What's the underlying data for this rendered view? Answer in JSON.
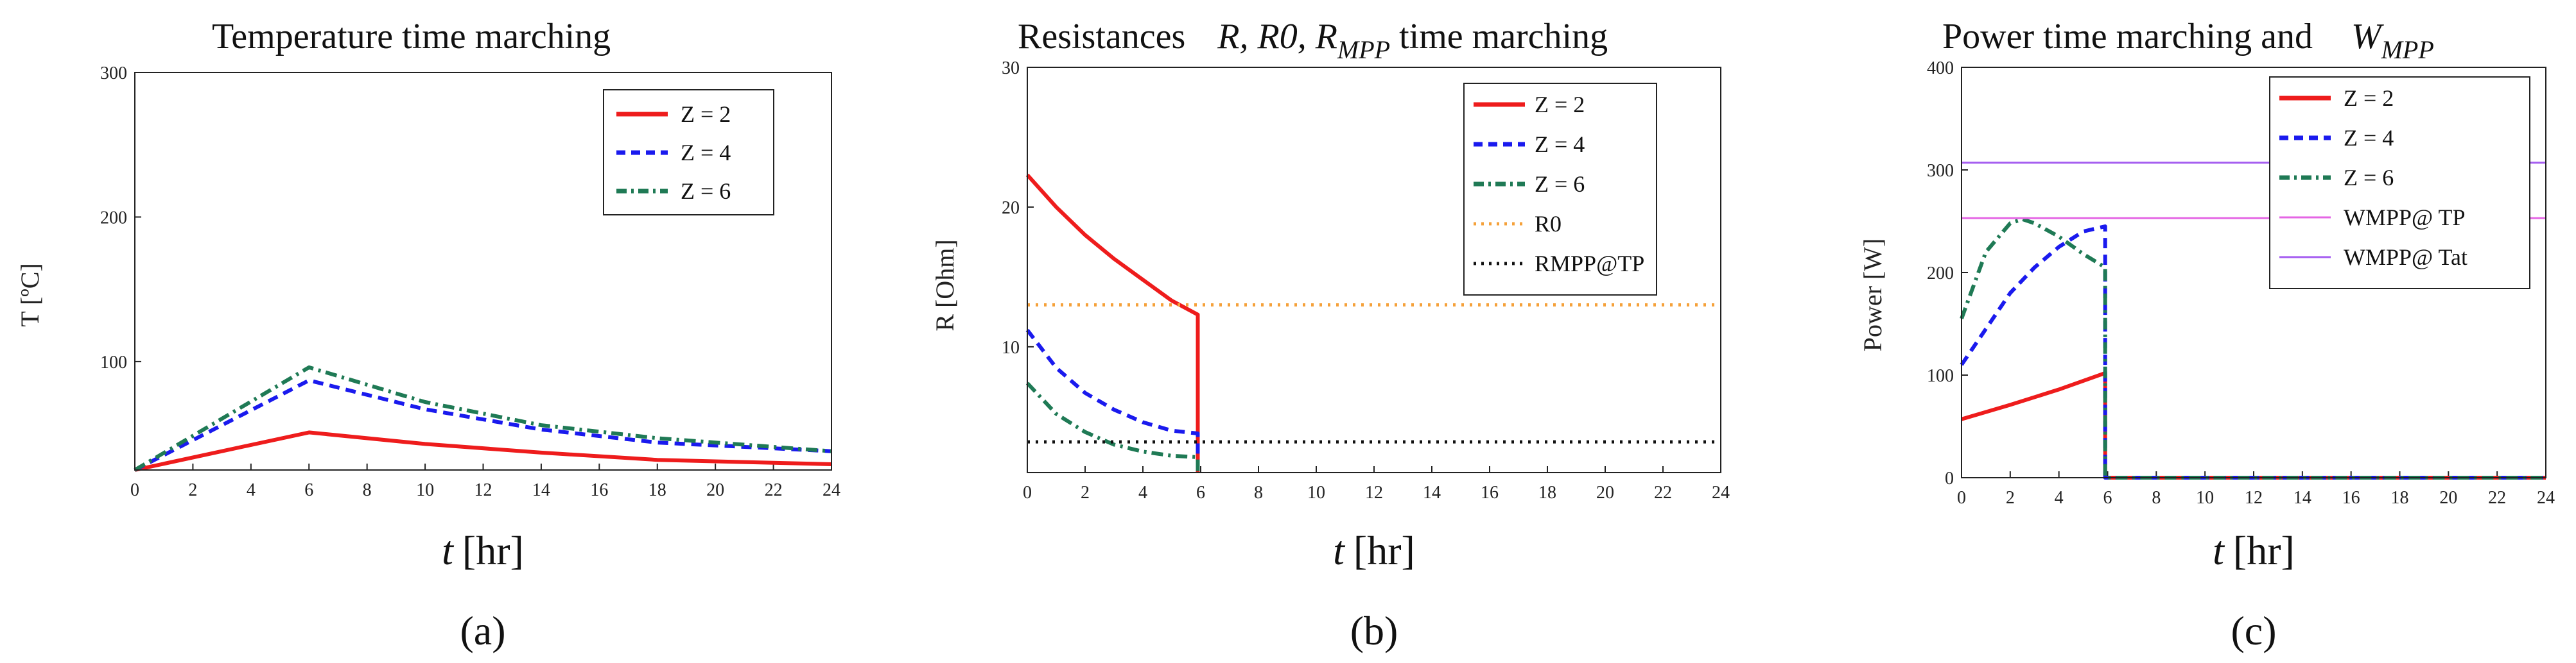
{
  "colors": {
    "red": "#ee1c1c",
    "blue": "#1a1aee",
    "green": "#1f7a55",
    "orange": "#f5a13a",
    "black": "#111111",
    "pink": "#e466e4",
    "violet": "#a45cf0"
  },
  "chart_data": [
    {
      "type": "line",
      "title": "Temperature time marching",
      "xlabel_var": "t",
      "xlabel_unit": "[hr]",
      "ylabel": "T [ºC]",
      "caption": "(a)",
      "xlim": [
        0,
        24
      ],
      "ylim": [
        25,
        300
      ],
      "xticks": [
        "0",
        "2",
        "4",
        "6",
        "8",
        "10",
        "12",
        "14",
        "16",
        "18",
        "20",
        "22",
        "24"
      ],
      "yticks": [
        "100",
        "200",
        "300"
      ],
      "series": [
        {
          "name": "Z = 2",
          "color": "red",
          "dash": "solid",
          "x": [
            0,
            6,
            10,
            14,
            18,
            24
          ],
          "y": [
            25,
            51,
            43,
            37,
            32,
            29
          ]
        },
        {
          "name": "Z = 4",
          "color": "blue",
          "dash": "dash",
          "x": [
            0,
            6,
            10,
            14,
            18,
            24
          ],
          "y": [
            25,
            87,
            67,
            53,
            44,
            38
          ]
        },
        {
          "name": "Z = 6",
          "color": "green",
          "dash": "dashdot",
          "x": [
            0,
            6,
            10,
            14,
            18,
            24
          ],
          "y": [
            25,
            96,
            72,
            56,
            47,
            38
          ]
        }
      ]
    },
    {
      "type": "line",
      "title": "Resistances",
      "title_math": "R, R0, R",
      "title_math_sub": "MPP",
      "title_tail": "time marching",
      "xlabel_var": "t",
      "xlabel_unit": "[hr]",
      "ylabel": "R [Ohm]",
      "caption": "(b)",
      "xlim": [
        0,
        24
      ],
      "ylim": [
        1,
        30
      ],
      "xticks": [
        "0",
        "2",
        "4",
        "6",
        "8",
        "10",
        "12",
        "14",
        "16",
        "18",
        "20",
        "22",
        "24"
      ],
      "yticks": [
        "10",
        "20",
        "30"
      ],
      "series": [
        {
          "name": "Z = 2",
          "color": "red",
          "dash": "solid",
          "x": [
            0,
            1,
            2,
            3,
            4,
            5,
            5.9,
            5.9
          ],
          "y": [
            22.3,
            20,
            18,
            16.3,
            14.8,
            13.3,
            12.3,
            1
          ]
        },
        {
          "name": "Z = 4",
          "color": "blue",
          "dash": "dash",
          "x": [
            0,
            1,
            2,
            3,
            4,
            5,
            5.9,
            5.9
          ],
          "y": [
            11.2,
            8.5,
            6.7,
            5.5,
            4.6,
            4,
            3.8,
            1
          ]
        },
        {
          "name": "Z = 6",
          "color": "green",
          "dash": "dashdot",
          "x": [
            0,
            1,
            2,
            3,
            4,
            5,
            5.9,
            5.9
          ],
          "y": [
            7.4,
            5.2,
            3.9,
            3.0,
            2.5,
            2.2,
            2.1,
            1
          ]
        },
        {
          "name": "R0",
          "color": "orange",
          "dash": "dot",
          "x": [
            0,
            24
          ],
          "y": [
            13,
            13
          ]
        },
        {
          "name": "RMPP@TP",
          "color": "black",
          "dash": "dot",
          "x": [
            0,
            24
          ],
          "y": [
            3.2,
            3.2
          ]
        }
      ]
    },
    {
      "type": "line",
      "title": "Power time marching and",
      "title_math": "W",
      "title_math_sub": "MPP",
      "xlabel_var": "t",
      "xlabel_unit": "[hr]",
      "ylabel": "Power [W]",
      "caption": "(c)",
      "xlim": [
        0,
        24
      ],
      "ylim": [
        0,
        400
      ],
      "xticks": [
        "0",
        "2",
        "4",
        "6",
        "8",
        "10",
        "12",
        "14",
        "16",
        "18",
        "20",
        "22",
        "24"
      ],
      "yticks": [
        "0",
        "100",
        "200",
        "300",
        "400"
      ],
      "series": [
        {
          "name": "Z = 2",
          "color": "red",
          "dash": "solid",
          "x": [
            0,
            2,
            4,
            5.9,
            5.9,
            24
          ],
          "y": [
            57,
            71,
            86,
            102,
            0,
            0
          ]
        },
        {
          "name": "Z = 4",
          "color": "blue",
          "dash": "dash",
          "x": [
            0,
            1,
            2,
            3,
            4,
            5,
            5.9,
            5.9,
            24
          ],
          "y": [
            110,
            145,
            180,
            205,
            225,
            240,
            245,
            0,
            0
          ]
        },
        {
          "name": "Z = 6",
          "color": "green",
          "dash": "dashdot",
          "x": [
            0,
            1,
            2,
            2.5,
            3,
            4,
            5,
            5.9,
            5.9,
            24
          ],
          "y": [
            155,
            220,
            248,
            252,
            248,
            235,
            218,
            205,
            0,
            0
          ]
        },
        {
          "name": "WMPP@ TP",
          "color": "pink",
          "dash": "solid",
          "x": [
            0,
            24
          ],
          "y": [
            253,
            253
          ]
        },
        {
          "name": "WMPP@ Tat",
          "color": "violet",
          "dash": "solid",
          "x": [
            0,
            24
          ],
          "y": [
            307,
            307
          ]
        }
      ]
    }
  ]
}
